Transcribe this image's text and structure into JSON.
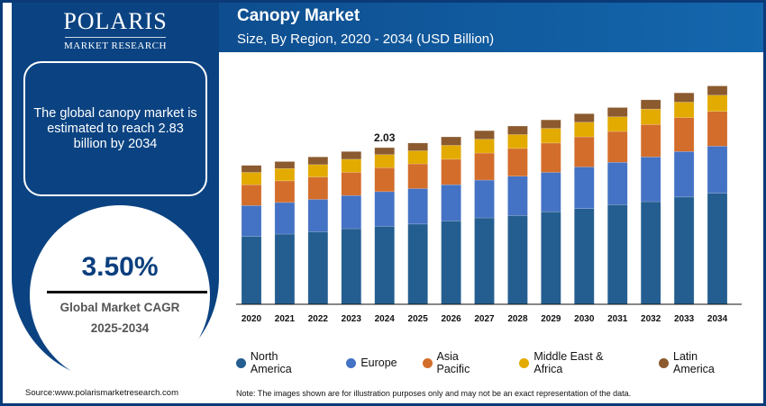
{
  "brand": {
    "name": "POLARIS",
    "tagline": "MARKET RESEARCH"
  },
  "header": {
    "title": "Canopy Market",
    "subtitle": "Size, By Region, 2020 - 2034 (USD Billion)"
  },
  "info": {
    "text": "The global canopy market is estimated to reach 2.83 billion by 2034"
  },
  "cagr": {
    "value": "3.50%",
    "label": "Global Market CAGR",
    "period": "2025-2034"
  },
  "source": "Source:www.polarismarketresearch.com",
  "note": "Note: The images shown are for illustration purposes only and may not be an exact representation of the data.",
  "chart_data": {
    "type": "stacked-bar",
    "title": "Canopy Market",
    "subtitle": "Size, By Region, 2020 - 2034 (USD Billion)",
    "categories": [
      "2020",
      "2021",
      "2022",
      "2023",
      "2024",
      "2025",
      "2026",
      "2027",
      "2028",
      "2029",
      "2030",
      "2031",
      "2032",
      "2033",
      "2034"
    ],
    "series": [
      {
        "name": "North America",
        "color": "#245e90",
        "values": [
          0.88,
          0.91,
          0.94,
          0.98,
          1.01,
          1.04,
          1.08,
          1.12,
          1.15,
          1.2,
          1.24,
          1.29,
          1.33,
          1.39,
          1.44
        ]
      },
      {
        "name": "Europe",
        "color": "#4472c4",
        "values": [
          0.4,
          0.41,
          0.42,
          0.43,
          0.45,
          0.46,
          0.47,
          0.49,
          0.51,
          0.51,
          0.54,
          0.55,
          0.58,
          0.59,
          0.61
        ]
      },
      {
        "name": "Asia Pacific",
        "color": "#d36d2b",
        "values": [
          0.27,
          0.28,
          0.29,
          0.3,
          0.31,
          0.32,
          0.33,
          0.35,
          0.36,
          0.38,
          0.39,
          0.4,
          0.42,
          0.44,
          0.45
        ]
      },
      {
        "name": "Middle East & Africa",
        "color": "#e3aa00",
        "values": [
          0.16,
          0.16,
          0.16,
          0.17,
          0.17,
          0.17,
          0.18,
          0.18,
          0.18,
          0.19,
          0.19,
          0.19,
          0.2,
          0.2,
          0.21
        ]
      },
      {
        "name": "Latin America",
        "color": "#8b5a2e",
        "values": [
          0.09,
          0.09,
          0.1,
          0.1,
          0.09,
          0.1,
          0.11,
          0.11,
          0.11,
          0.11,
          0.11,
          0.12,
          0.12,
          0.12,
          0.12
        ]
      }
    ],
    "annotations": [
      {
        "category": "2024",
        "label": "2.03"
      }
    ],
    "ylim": [
      0,
      3.2
    ],
    "grid": false,
    "legend": "bottom"
  }
}
